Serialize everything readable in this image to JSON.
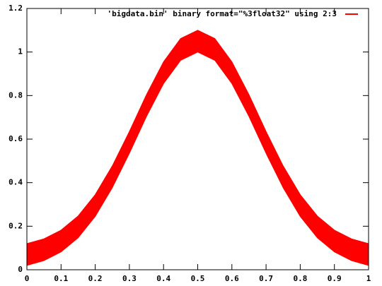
{
  "chart_data": {
    "type": "band",
    "x": [
      0,
      0.05,
      0.1,
      0.15,
      0.2,
      0.25,
      0.3,
      0.35,
      0.4,
      0.45,
      0.5,
      0.55,
      0.6,
      0.65,
      0.7,
      0.75,
      0.8,
      0.85,
      0.9,
      0.95,
      1
    ],
    "series": [
      {
        "name": "'bigdata.bin' binary format=\"%3float32\"  using 2:3",
        "color": "#ff0000",
        "lower": [
          0.02,
          0.042,
          0.082,
          0.147,
          0.245,
          0.377,
          0.535,
          0.704,
          0.855,
          0.962,
          1.0,
          0.962,
          0.855,
          0.704,
          0.535,
          0.377,
          0.245,
          0.147,
          0.082,
          0.042,
          0.02
        ],
        "upper": [
          0.12,
          0.142,
          0.182,
          0.247,
          0.345,
          0.477,
          0.635,
          0.804,
          0.955,
          1.062,
          1.1,
          1.062,
          0.955,
          0.804,
          0.635,
          0.477,
          0.345,
          0.247,
          0.182,
          0.142,
          0.12
        ]
      }
    ],
    "xlim": [
      0,
      1
    ],
    "xticks": [
      0,
      0.1,
      0.2,
      0.3,
      0.4,
      0.5,
      0.6,
      0.7,
      0.8,
      0.9,
      1
    ],
    "ylim": [
      0,
      1.2
    ],
    "yticks": [
      0,
      0.2,
      0.4,
      0.6,
      0.8,
      1,
      1.2
    ],
    "grid": false,
    "legend": "top-right"
  }
}
